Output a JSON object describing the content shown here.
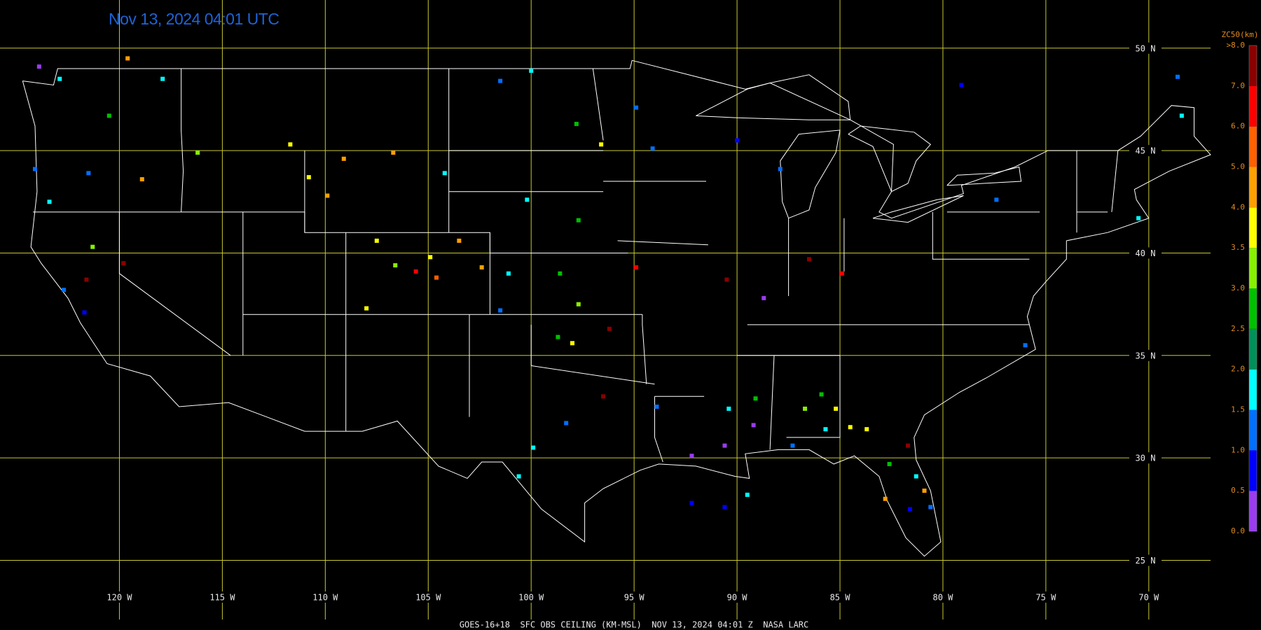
{
  "map": {
    "timestamp": "Nov 13, 2024 04:01 UTC",
    "footer": "GOES-16+18  SFC OBS CEILING (KM-MSL)  NOV 13, 2024 04:01 Z  NASA LARC",
    "extent": {
      "lon": [
        -125.8,
        -64.55
      ],
      "lat": [
        21.6,
        52.35
      ]
    },
    "lat_lines": [
      {
        "value": 50,
        "label": "50 N"
      },
      {
        "value": 45,
        "label": "45 N"
      },
      {
        "value": 40,
        "label": "40 N"
      },
      {
        "value": 35,
        "label": "35 N"
      },
      {
        "value": 30,
        "label": "30 N"
      },
      {
        "value": 25,
        "label": "25 N"
      }
    ],
    "lon_lines": [
      {
        "value": -120,
        "label": "120 W"
      },
      {
        "value": -115,
        "label": "115 W"
      },
      {
        "value": -110,
        "label": "110 W"
      },
      {
        "value": -105,
        "label": "105 W"
      },
      {
        "value": -100,
        "label": "100 W"
      },
      {
        "value": -95,
        "label": "95 W"
      },
      {
        "value": -90,
        "label": "90 W"
      },
      {
        "value": -85,
        "label": "85 W"
      },
      {
        "value": -80,
        "label": "80 W"
      },
      {
        "value": -75,
        "label": "75 W"
      },
      {
        "value": -70,
        "label": "70 W"
      }
    ],
    "colorbar": {
      "title": "ZC50(km)",
      "ticks": [
        {
          "value": 0,
          "label": "0.0"
        },
        {
          "value": 0.5,
          "label": "0.5"
        },
        {
          "value": 1,
          "label": "1.0"
        },
        {
          "value": 1.5,
          "label": "1.5"
        },
        {
          "value": 2,
          "label": "2.0"
        },
        {
          "value": 2.5,
          "label": "2.5"
        },
        {
          "value": 3,
          "label": "3.0"
        },
        {
          "value": 3.5,
          "label": "3.5"
        },
        {
          "value": 4,
          "label": "4.0"
        },
        {
          "value": 5,
          "label": "5.0"
        },
        {
          "value": 6,
          "label": "6.0"
        },
        {
          "value": 7,
          "label": "7.0"
        },
        {
          "value": 8,
          "label": ">8.0"
        }
      ],
      "colors": [
        "#9a3cf0",
        "#0000ff",
        "#0070ff",
        "#00ffff",
        "#00905a",
        "#00c000",
        "#88f000",
        "#ffff00",
        "#ffa000",
        "#ff6000",
        "#ff0000",
        "#8b0000"
      ]
    },
    "stations": [
      [
        -123.9,
        49.1,
        0.3
      ],
      [
        -122.9,
        48.5,
        1.8
      ],
      [
        -121.5,
        43.9,
        1.2
      ],
      [
        -124.1,
        44.1,
        1.2
      ],
      [
        -123.4,
        42.5,
        1.8
      ],
      [
        -119.6,
        49.5,
        4.7
      ],
      [
        -117.9,
        48.5,
        1.8
      ],
      [
        -120.5,
        46.7,
        2.7
      ],
      [
        -116.2,
        44.9,
        3.2
      ],
      [
        -118.9,
        43.6,
        4.6
      ],
      [
        -121.3,
        40.3,
        3.3
      ],
      [
        -121.6,
        38.7,
        7.5
      ],
      [
        -119.8,
        39.5,
        7.5
      ],
      [
        -122.7,
        38.2,
        1.2
      ],
      [
        -121.7,
        37.1,
        0.8
      ],
      [
        -111.7,
        45.3,
        3.8
      ],
      [
        -109.1,
        44.6,
        4.7
      ],
      [
        -106.7,
        44.9,
        4.6
      ],
      [
        -104.2,
        43.9,
        1.8
      ],
      [
        -110.8,
        43.7,
        3.8
      ],
      [
        -109.9,
        42.8,
        4.7
      ],
      [
        -104.9,
        39.8,
        3.8
      ],
      [
        -104.6,
        38.8,
        5.8
      ],
      [
        -105.6,
        39.1,
        6.7
      ],
      [
        -103.5,
        40.6,
        4.6
      ],
      [
        -108.0,
        37.3,
        3.7
      ],
      [
        -102.4,
        39.3,
        4.7
      ],
      [
        -107.5,
        40.6,
        3.8
      ],
      [
        -106.6,
        39.4,
        3.3
      ],
      [
        -100.0,
        48.9,
        1.8
      ],
      [
        -101.5,
        48.4,
        1.2
      ],
      [
        -97.8,
        46.3,
        2.7
      ],
      [
        -96.6,
        45.3,
        3.8
      ],
      [
        -100.2,
        42.6,
        1.8
      ],
      [
        -97.7,
        41.6,
        2.7
      ],
      [
        -101.1,
        39.0,
        1.8
      ],
      [
        -98.6,
        39.0,
        2.7
      ],
      [
        -97.7,
        37.5,
        3.3
      ],
      [
        -101.5,
        37.2,
        1.2
      ],
      [
        -96.2,
        36.3,
        7.5
      ],
      [
        -98.0,
        35.6,
        3.8
      ],
      [
        -98.7,
        35.9,
        2.7
      ],
      [
        -96.5,
        33.0,
        7.5
      ],
      [
        -98.3,
        31.7,
        1.2
      ],
      [
        -99.9,
        30.5,
        1.8
      ],
      [
        -100.6,
        29.1,
        1.8
      ],
      [
        -94.9,
        39.3,
        6.7
      ],
      [
        -90.5,
        38.7,
        7.5
      ],
      [
        -88.7,
        37.8,
        0.3
      ],
      [
        -86.5,
        39.7,
        7.5
      ],
      [
        -84.9,
        39.0,
        6.7
      ],
      [
        -90.0,
        45.5,
        0.8
      ],
      [
        -87.9,
        44.1,
        1.2
      ],
      [
        -94.9,
        47.1,
        1.2
      ],
      [
        -94.1,
        45.1,
        1.2
      ],
      [
        -79.1,
        48.2,
        0.8
      ],
      [
        -77.4,
        42.6,
        1.2
      ],
      [
        -70.5,
        41.7,
        1.8
      ],
      [
        -68.6,
        48.6,
        1.2
      ],
      [
        -68.4,
        46.7,
        1.8
      ],
      [
        -76.0,
        35.5,
        1.2
      ],
      [
        -93.9,
        32.5,
        1.2
      ],
      [
        -92.2,
        30.1,
        0.3
      ],
      [
        -90.6,
        30.6,
        0.3
      ],
      [
        -89.2,
        31.6,
        0.3
      ],
      [
        -90.4,
        32.4,
        1.8
      ],
      [
        -89.1,
        32.9,
        2.7
      ],
      [
        -86.7,
        32.4,
        3.3
      ],
      [
        -85.9,
        33.1,
        2.7
      ],
      [
        -85.2,
        32.4,
        3.8
      ],
      [
        -84.5,
        31.5,
        3.8
      ],
      [
        -83.7,
        31.4,
        3.8
      ],
      [
        -85.7,
        31.4,
        1.8
      ],
      [
        -87.3,
        30.6,
        1.2
      ],
      [
        -82.6,
        29.7,
        2.7
      ],
      [
        -81.3,
        29.1,
        1.8
      ],
      [
        -80.9,
        28.4,
        4.7
      ],
      [
        -82.8,
        28.0,
        4.7
      ],
      [
        -80.6,
        27.6,
        1.2
      ],
      [
        -81.6,
        27.5,
        0.8
      ],
      [
        -92.2,
        27.8,
        0.8
      ],
      [
        -90.6,
        27.6,
        0.8
      ],
      [
        -89.5,
        28.2,
        1.8
      ],
      [
        -81.7,
        30.6,
        7.5
      ]
    ]
  }
}
